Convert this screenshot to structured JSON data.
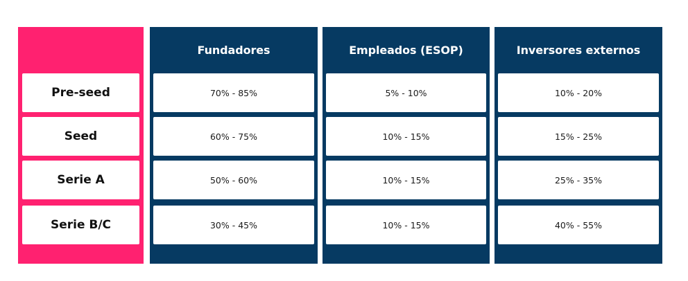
{
  "chart_data": {
    "type": "table",
    "columns": [
      "Fundadores",
      "Empleados (ESOP)",
      "Inversores externos"
    ],
    "rows": [
      "Pre-seed",
      "Seed",
      "Serie A",
      "Serie B/C"
    ],
    "cells": [
      [
        "70% - 85%",
        "5% - 10%",
        "10% - 20%"
      ],
      [
        "60% - 75%",
        "10% - 15%",
        "15% - 25%"
      ],
      [
        "50% - 60%",
        "10% - 15%",
        "25% - 35%"
      ],
      [
        "30% - 45%",
        "10% - 15%",
        "40% - 55%"
      ]
    ],
    "colors": {
      "row_panel": "#FF2170",
      "column_panels": "#063A62",
      "cell_background": "#FFFFFF",
      "header_text": "#FFFFFF",
      "cell_text": "#111111"
    }
  }
}
